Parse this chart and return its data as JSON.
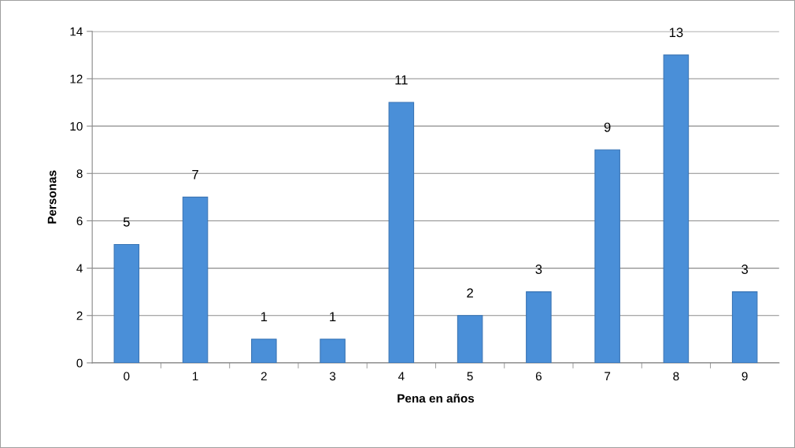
{
  "chart_data": {
    "type": "bar",
    "xlabel": "Pena en años",
    "ylabel": "Personas",
    "categories": [
      "0",
      "1",
      "2",
      "3",
      "4",
      "5",
      "6",
      "7",
      "8",
      "9"
    ],
    "values": [
      5,
      7,
      1,
      1,
      11,
      2,
      3,
      9,
      13,
      3
    ],
    "color": "#4a8fd8",
    "ylim": [
      0,
      14
    ],
    "yticks": [
      0,
      2,
      4,
      6,
      8,
      10,
      12,
      14
    ],
    "grid": "y",
    "data_labels": true
  }
}
